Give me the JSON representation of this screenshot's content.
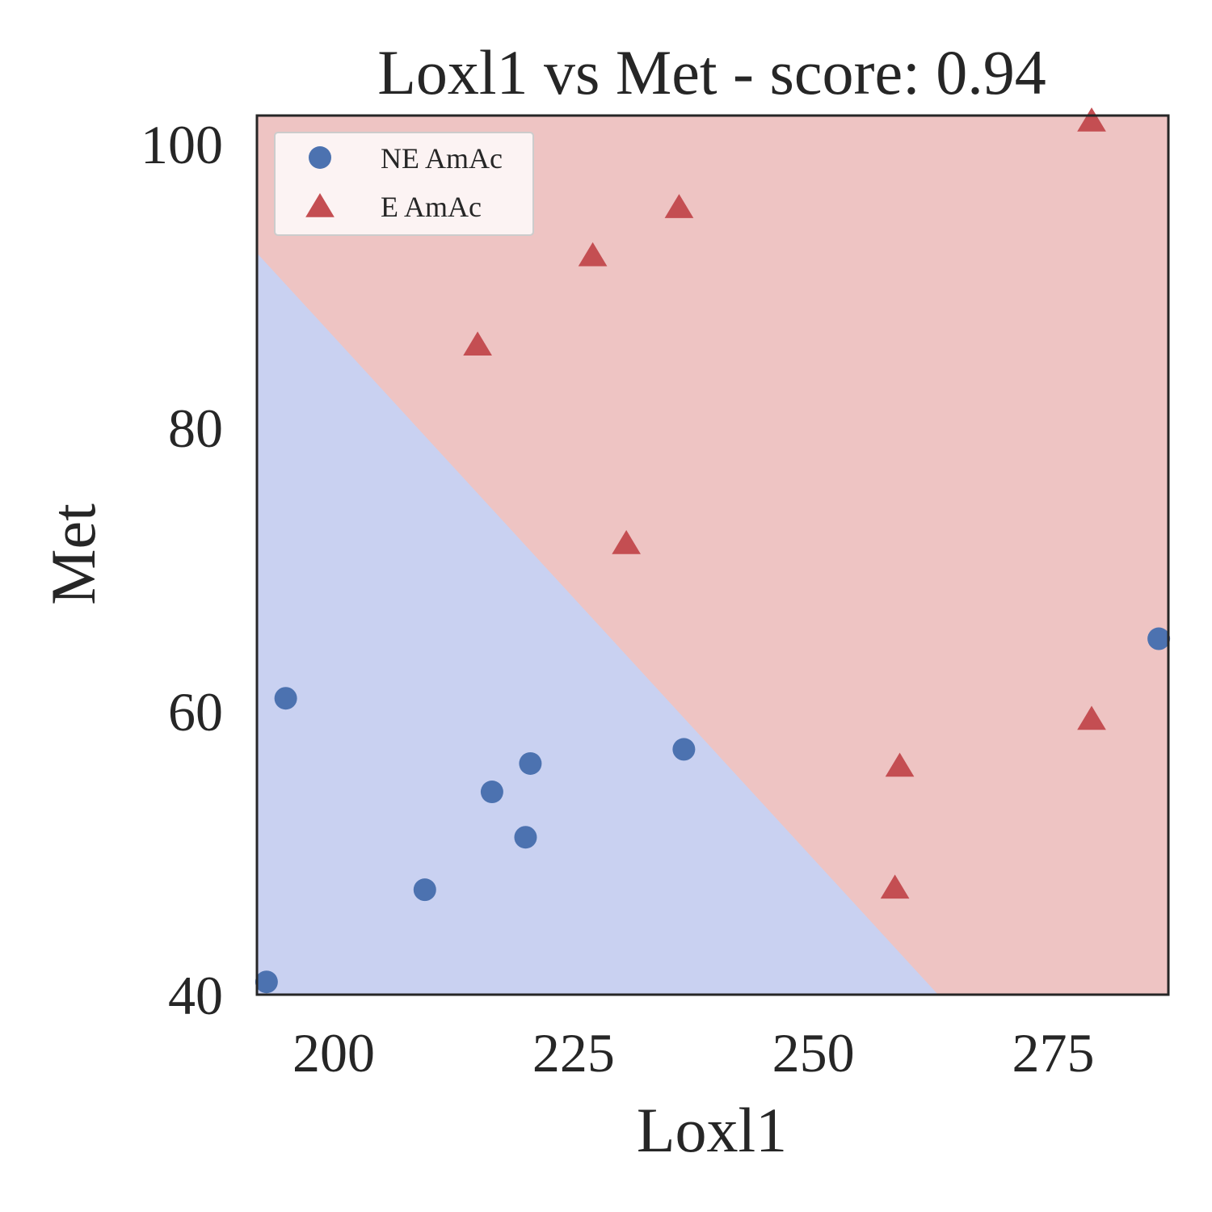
{
  "chart_data": {
    "type": "scatter",
    "title": "Loxl1 vs Met - score: 0.94",
    "xlabel": "Loxl1",
    "ylabel": "Met",
    "xlim": [
      192,
      287
    ],
    "ylim": [
      40,
      102
    ],
    "xticks": [
      200,
      225,
      250,
      275
    ],
    "yticks": [
      40,
      60,
      80,
      100
    ],
    "grid": false,
    "legend_position": "top-left",
    "decision_boundary": {
      "line": [
        [
          192,
          92.3
        ],
        [
          263,
          40
        ]
      ],
      "above_region": "E AmAc",
      "below_region": "NE AmAc",
      "above_color": "#eec4c3",
      "below_color": "#c9d1f1"
    },
    "series": [
      {
        "name": "NE AmAc",
        "marker": "circle",
        "color": "#4c72b0",
        "points": [
          [
            193,
            40.9
          ],
          [
            195,
            60.9
          ],
          [
            209.5,
            47.4
          ],
          [
            216.5,
            54.3
          ],
          [
            220.5,
            56.3
          ],
          [
            220,
            51.1
          ],
          [
            236.5,
            57.3
          ],
          [
            286,
            65.1
          ]
        ]
      },
      {
        "name": "E AmAc",
        "marker": "triangle",
        "color": "#c44e52",
        "points": [
          [
            215,
            85.8
          ],
          [
            227,
            92.1
          ],
          [
            236,
            95.5
          ],
          [
            230.5,
            71.8
          ],
          [
            279,
            101.6
          ],
          [
            279,
            59.4
          ],
          [
            259,
            56.1
          ],
          [
            258.5,
            47.5
          ]
        ]
      }
    ]
  }
}
